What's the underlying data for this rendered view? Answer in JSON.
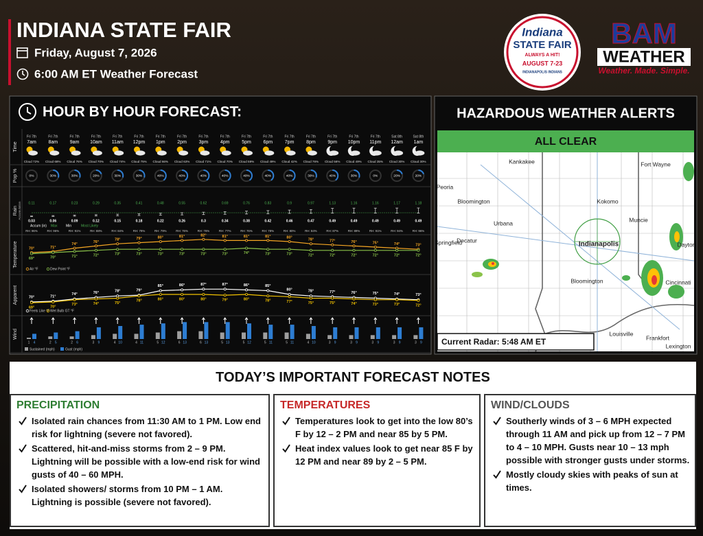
{
  "header": {
    "title": "INDIANA STATE FAIR",
    "date": "Friday, August 7, 2026",
    "subtitle": "6:00 AM ET Weather Forecast"
  },
  "logos": {
    "fair": {
      "top": "Indiana",
      "main": "STATE FAIR",
      "tag": "ALWAYS A HIT!",
      "dates": "AUGUST 7-23",
      "sponsor": "INDIANAPOLIS INDIANS"
    },
    "bam": {
      "main": "BAM",
      "sub": "WEATHER",
      "slogan": "Weather. Made. Simple."
    }
  },
  "hourly": {
    "title": "HOUR BY HOUR FORECAST:",
    "row_labels": {
      "time": "Time",
      "pop": "Pop %",
      "rain": "Rain",
      "rain_sub": "Accumulation",
      "temperature": "Temperature",
      "apparent": "Apparent",
      "wind": "Wind"
    },
    "days": [
      "Fri 7th",
      "Fri 7th",
      "Fri 7th",
      "Fri 7th",
      "Fri 7th",
      "Fri 7th",
      "Fri 7th",
      "Fri 7th",
      "Fri 7th",
      "Fri 7th",
      "Fri 7th",
      "Fri 7th",
      "Fri 7th",
      "Fri 7th",
      "Fri 7th",
      "Fri 7th",
      "Fri 7th",
      "Sat 8th",
      "Sat 8th"
    ],
    "hours": [
      "7am",
      "8am",
      "9am",
      "10am",
      "11am",
      "12pm",
      "1pm",
      "2pm",
      "3pm",
      "4pm",
      "5pm",
      "6pm",
      "7pm",
      "8pm",
      "9pm",
      "10pm",
      "11pm",
      "12am",
      "1am"
    ],
    "cloud": {
      "values": [
        72,
        68,
        76,
        70,
        74,
        75,
        66,
        63,
        71,
        70,
        59,
        49,
        42,
        76,
        56,
        49,
        35,
        30,
        30
      ],
      "value_labels": [
        "Cloud 72%",
        "Cloud 68%",
        "Cloud 76%",
        "Cloud 70%",
        "Cloud 74%",
        "Cloud 75%",
        "Cloud 66%",
        "Cloud 63%",
        "Cloud 71%",
        "Cloud 70%",
        "Cloud 59%",
        "Cloud 49%",
        "Cloud 42%",
        "Cloud 76%",
        "Cloud 56%",
        "Cloud 49%",
        "Cloud 35%",
        "Cloud 30%",
        "Cloud 30%"
      ]
    },
    "pop": {
      "values": [
        0,
        30,
        30,
        20,
        30,
        30,
        40,
        40,
        40,
        40,
        40,
        40,
        40,
        30,
        40,
        30,
        0,
        20,
        20
      ],
      "value_labels": [
        "0%",
        "30%",
        "30%",
        "20%",
        "30%",
        "30%",
        "40%",
        "40%",
        "40%",
        "40%",
        "40%",
        "40%",
        "40%",
        "30%",
        "40%",
        "30%",
        "0%",
        "20%",
        "20%"
      ]
    },
    "rain": {
      "max": [
        0.11,
        0.17,
        0.23,
        0.29,
        0.35,
        0.41,
        0.48,
        0.55,
        0.62,
        0.69,
        0.76,
        0.83,
        0.9,
        0.97,
        1.13,
        1.16,
        1.16,
        1.17,
        1.18
      ],
      "min": [
        0.03,
        0.06,
        0.09,
        0.12,
        0.15,
        0.18,
        0.22,
        0.26,
        0.3,
        0.34,
        0.38,
        0.42,
        0.46,
        0.47,
        0.49,
        0.49,
        0.49,
        0.49,
        0.49
      ],
      "legend": [
        "Accum (in)",
        "Max",
        "Min",
        "Most Likely"
      ]
    },
    "rh": {
      "values": [
        96,
        96,
        91,
        88,
        84,
        79,
        79,
        76,
        76,
        77,
        76,
        78,
        80,
        84,
        87,
        89,
        91,
        94,
        96
      ],
      "value_labels": [
        "RH: 96%",
        "RH: 96%",
        "RH: 91%",
        "RH: 88%",
        "RH: 84%",
        "RH: 79%",
        "RH: 79%",
        "RH: 76%",
        "RH: 76%",
        "RH: 77%",
        "RH: 76%",
        "RH: 78%",
        "RH: 80%",
        "RH: 84%",
        "RH: 87%",
        "RH: 89%",
        "RH: 91%",
        "RH: 94%",
        "RH: 96%"
      ]
    },
    "temperature": {
      "series": [
        {
          "name": "Air °F",
          "color": "#f5a623",
          "values": [
            70,
            71,
            74,
            76,
            78,
            79,
            80,
            81,
            82,
            81,
            81,
            81,
            80,
            78,
            77,
            76,
            75,
            74,
            73
          ],
          "value_labels": [
            "70°",
            "71°",
            "74°",
            "76°",
            "78°",
            "79°",
            "80°",
            "81°",
            "82°",
            "81°",
            "81°",
            "81°",
            "80°",
            "78°",
            "77°",
            "76°",
            "75°",
            "74°",
            "73°"
          ]
        },
        {
          "name": "Dew Point °F",
          "color": "#8bc34a",
          "values": [
            69,
            70,
            71,
            72,
            73,
            73,
            73,
            73,
            73,
            73,
            74,
            73,
            73,
            72,
            72,
            72,
            72,
            72,
            72
          ],
          "value_labels": [
            "69°",
            "70°",
            "71°",
            "72°",
            "73°",
            "73°",
            "73°",
            "73°",
            "73°",
            "73°",
            "74°",
            "73°",
            "73°",
            "72°",
            "72°",
            "72°",
            "72°",
            "72°",
            "72°"
          ]
        }
      ]
    },
    "apparent": {
      "series": [
        {
          "name": "Feels Like °F",
          "color": "#ffffff",
          "values": [
            70,
            71,
            74,
            76,
            78,
            79,
            85,
            86,
            87,
            87,
            86,
            85,
            80,
            78,
            77,
            76,
            75,
            74,
            73
          ],
          "value_labels": [
            "70°",
            "71°",
            "74°",
            "76°",
            "78°",
            "79°",
            "85°",
            "86°",
            "87°",
            "87°",
            "86°",
            "85°",
            "80°",
            "78°",
            "77°",
            "76°",
            "75°",
            "74°",
            "73°"
          ]
        },
        {
          "name": "Wet Bulb GT °F",
          "color": "#f2c200",
          "values": [
            69,
            70,
            73,
            74,
            75,
            78,
            80,
            80,
            80,
            79,
            80,
            78,
            77,
            75,
            75,
            74,
            73,
            73,
            72
          ],
          "value_labels": [
            "69°",
            "70°",
            "73°",
            "74°",
            "75°",
            "78°",
            "80°",
            "80°",
            "80°",
            "79°",
            "80°",
            "78°",
            "77°",
            "75°",
            "75°",
            "74°",
            "73°",
            "73°",
            "72°"
          ]
        }
      ]
    },
    "wind": {
      "series": [
        {
          "name": "Sustained (mph)",
          "color": "#9e9e9e",
          "values": [
            1,
            2,
            2,
            3,
            4,
            4,
            5,
            6,
            6,
            5,
            5,
            5,
            5,
            4,
            3,
            3,
            3,
            3,
            3
          ]
        },
        {
          "name": "Gust (mph)",
          "color": "#2d7dd2",
          "values": [
            4,
            5,
            6,
            9,
            10,
            11,
            12,
            13,
            13,
            13,
            12,
            11,
            11,
            10,
            9,
            9,
            9,
            9,
            9
          ]
        }
      ]
    }
  },
  "alerts": {
    "title": "HAZARDOUS WEATHER ALERTS",
    "status": "ALL CLEAR",
    "radar_time": "Current Radar: 5:48 AM ET",
    "cities": [
      "Kankakee",
      "Fort Wayne",
      "Peoria",
      "Bloomington",
      "Kokomo",
      "Urbana",
      "Muncie",
      "Decatur",
      "Indianapolis",
      "Bloomington",
      "Springfield",
      "Dayton",
      "Cincinnati",
      "Louisville",
      "Frankfort",
      "Lexington"
    ]
  },
  "notes": {
    "title": "TODAY’S IMPORTANT FORECAST NOTES",
    "sections": [
      {
        "heading": "PRECIPITATION",
        "items": [
          "Isolated rain chances from 11:30 AM to 1 PM. Low end risk for lightning (severe not favored).",
          "Scattered, hit-and-miss storms from 2 – 9 PM. Lightning will be possible with a low-end risk for wind gusts of 40 – 60 MPH.",
          "Isolated showers/ storms from 10 PM – 1 AM. Lightning is possible (severe not favored)."
        ]
      },
      {
        "heading": "TEMPERATURES",
        "items": [
          "Temperatures look to get into the low 80’s F by 12 – 2 PM and near 85 by 5 PM.",
          "Heat index values look to get near 85 F by 12 PM and near 89 by 2 – 5 PM."
        ]
      },
      {
        "heading": "WIND/CLOUDS",
        "items": [
          "Southerly winds of 3 – 6 MPH expected through 11 AM and pick up from 12 – 7 PM to 4 – 10 MPH.  Gusts near 10 – 13 mph possible with stronger gusts under storms.",
          "Mostly cloudy skies with peaks of sun at times."
        ]
      }
    ]
  }
}
